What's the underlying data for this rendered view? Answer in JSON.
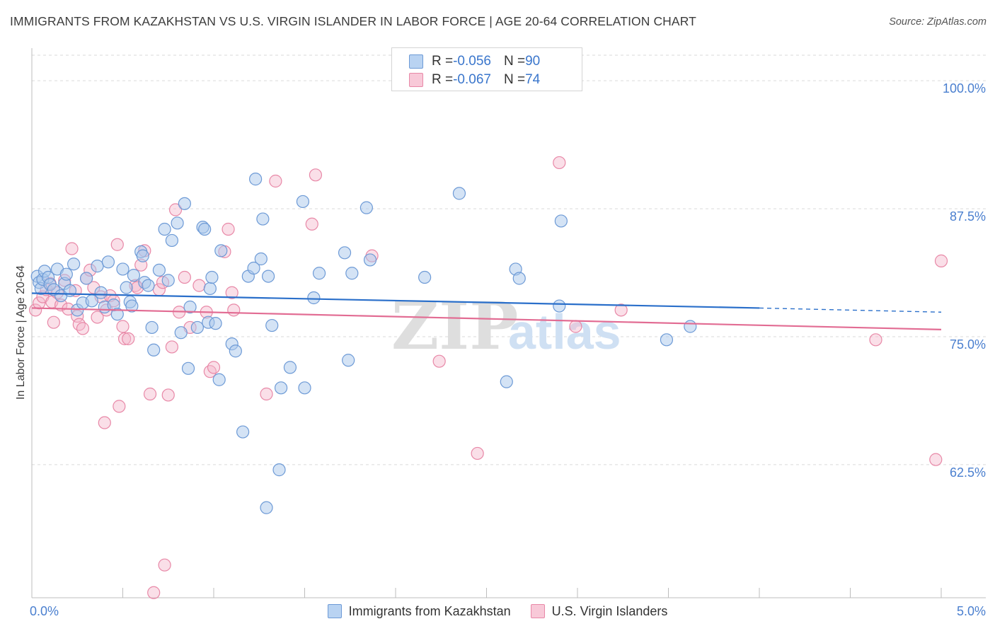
{
  "header": {
    "title": "IMMIGRANTS FROM KAZAKHSTAN VS U.S. VIRGIN ISLANDER IN LABOR FORCE | AGE 20-64 CORRELATION CHART",
    "source": "Source: ZipAtlas.com"
  },
  "legend": {
    "series1": {
      "r_label": "R = ",
      "r_value": "-0.056",
      "n_label": "N = ",
      "n_value": "90"
    },
    "series2": {
      "r_label": "R = ",
      "r_value": "-0.067",
      "n_label": "N = ",
      "n_value": "74"
    }
  },
  "watermark": {
    "zip": "ZIP",
    "atlas": "atlas"
  },
  "colors": {
    "blue_fill": "#a9c7ec",
    "blue_stroke": "#6d9ad6",
    "blue_line": "#2a6fca",
    "pink_fill": "#f4b9cc",
    "pink_stroke": "#e888a7",
    "pink_line": "#e26c93",
    "axis_text": "#4a7fcf",
    "grid": "#dadada"
  },
  "chart_data": {
    "type": "scatter",
    "title": "IMMIGRANTS FROM KAZAKHSTAN VS U.S. VIRGIN ISLANDER IN LABOR FORCE | AGE 20-64 CORRELATION CHART",
    "xlabel": "",
    "ylabel": "In Labor Force | Age 20-64",
    "xlim": [
      0,
      5
    ],
    "ylim": [
      49.5,
      102.5
    ],
    "x_tick_labels": [
      "0.0%",
      "5.0%"
    ],
    "y_ticks": [
      62.5,
      75.0,
      87.5,
      100.0
    ],
    "y_tick_labels": [
      "62.5%",
      "75.0%",
      "87.5%",
      "100.0%"
    ],
    "grid": true,
    "legend_position": "top-center",
    "series": [
      {
        "name": "Immigrants from Kazakhstan",
        "trend": {
          "x": [
            0,
            4.0
          ],
          "y": [
            79.25,
            77.8
          ],
          "dashed_to": [
            5.0,
            77.4
          ]
        },
        "points": [
          [
            0.03,
            80.9
          ],
          [
            0.04,
            80.3
          ],
          [
            0.05,
            79.7
          ],
          [
            0.06,
            80.6
          ],
          [
            0.07,
            81.4
          ],
          [
            0.09,
            80.8
          ],
          [
            0.1,
            80.1
          ],
          [
            0.12,
            79.6
          ],
          [
            0.14,
            81.6
          ],
          [
            0.16,
            79.0
          ],
          [
            0.18,
            80.2
          ],
          [
            0.19,
            81.1
          ],
          [
            0.21,
            79.5
          ],
          [
            0.23,
            82.1
          ],
          [
            0.25,
            77.6
          ],
          [
            0.28,
            78.3
          ],
          [
            0.3,
            80.7
          ],
          [
            0.33,
            78.5
          ],
          [
            0.36,
            81.9
          ],
          [
            0.38,
            79.3
          ],
          [
            0.4,
            77.9
          ],
          [
            0.42,
            82.3
          ],
          [
            0.45,
            78.1
          ],
          [
            0.47,
            77.2
          ],
          [
            0.5,
            81.6
          ],
          [
            0.52,
            79.8
          ],
          [
            0.54,
            78.4
          ],
          [
            0.55,
            78.0
          ],
          [
            0.56,
            81.0
          ],
          [
            0.6,
            83.3
          ],
          [
            0.61,
            82.9
          ],
          [
            0.62,
            80.3
          ],
          [
            0.64,
            80.0
          ],
          [
            0.66,
            75.9
          ],
          [
            0.67,
            73.7
          ],
          [
            0.7,
            81.5
          ],
          [
            0.73,
            85.5
          ],
          [
            0.75,
            80.5
          ],
          [
            0.77,
            84.4
          ],
          [
            0.8,
            86.1
          ],
          [
            0.82,
            75.4
          ],
          [
            0.84,
            88.0
          ],
          [
            0.86,
            71.9
          ],
          [
            0.87,
            77.9
          ],
          [
            0.91,
            75.9
          ],
          [
            0.94,
            85.7
          ],
          [
            0.95,
            85.5
          ],
          [
            0.97,
            76.4
          ],
          [
            0.98,
            79.7
          ],
          [
            0.99,
            80.8
          ],
          [
            1.01,
            76.3
          ],
          [
            1.03,
            70.8
          ],
          [
            1.04,
            83.4
          ],
          [
            1.1,
            74.3
          ],
          [
            1.12,
            73.6
          ],
          [
            1.16,
            65.7
          ],
          [
            1.19,
            80.9
          ],
          [
            1.22,
            81.7
          ],
          [
            1.23,
            90.4
          ],
          [
            1.26,
            82.6
          ],
          [
            1.27,
            86.5
          ],
          [
            1.29,
            58.3
          ],
          [
            1.3,
            80.9
          ],
          [
            1.32,
            76.1
          ],
          [
            1.36,
            62.0
          ],
          [
            1.37,
            70.0
          ],
          [
            1.42,
            72.0
          ],
          [
            1.49,
            88.2
          ],
          [
            1.5,
            70.0
          ],
          [
            1.55,
            78.8
          ],
          [
            1.58,
            81.2
          ],
          [
            1.72,
            83.2
          ],
          [
            1.74,
            72.7
          ],
          [
            1.76,
            81.2
          ],
          [
            1.84,
            87.6
          ],
          [
            1.86,
            82.5
          ],
          [
            2.16,
            80.8
          ],
          [
            2.35,
            89.0
          ],
          [
            2.61,
            70.6
          ],
          [
            2.66,
            81.6
          ],
          [
            2.68,
            80.7
          ],
          [
            2.9,
            78.0
          ],
          [
            2.91,
            86.3
          ],
          [
            3.49,
            74.7
          ],
          [
            3.62,
            76.0
          ]
        ]
      },
      {
        "name": "U.S. Virgin Islanders",
        "trend": {
          "x": [
            0,
            5.0
          ],
          "y": [
            77.8,
            75.7
          ]
        },
        "points": [
          [
            0.02,
            77.6
          ],
          [
            0.04,
            78.3
          ],
          [
            0.06,
            78.9
          ],
          [
            0.08,
            79.6
          ],
          [
            0.1,
            80.2
          ],
          [
            0.11,
            78.4
          ],
          [
            0.12,
            76.4
          ],
          [
            0.14,
            79.3
          ],
          [
            0.16,
            78.1
          ],
          [
            0.18,
            80.5
          ],
          [
            0.2,
            77.7
          ],
          [
            0.22,
            83.6
          ],
          [
            0.24,
            79.5
          ],
          [
            0.25,
            77.0
          ],
          [
            0.26,
            76.2
          ],
          [
            0.28,
            75.8
          ],
          [
            0.3,
            80.7
          ],
          [
            0.32,
            81.5
          ],
          [
            0.34,
            79.8
          ],
          [
            0.36,
            76.9
          ],
          [
            0.38,
            78.9
          ],
          [
            0.4,
            66.6
          ],
          [
            0.41,
            77.6
          ],
          [
            0.43,
            79.0
          ],
          [
            0.45,
            78.5
          ],
          [
            0.47,
            84.0
          ],
          [
            0.48,
            68.2
          ],
          [
            0.5,
            76.0
          ],
          [
            0.51,
            74.8
          ],
          [
            0.53,
            74.8
          ],
          [
            0.57,
            80.0
          ],
          [
            0.58,
            79.8
          ],
          [
            0.6,
            82.0
          ],
          [
            0.62,
            83.4
          ],
          [
            0.65,
            69.4
          ],
          [
            0.67,
            50.0
          ],
          [
            0.7,
            79.6
          ],
          [
            0.72,
            80.3
          ],
          [
            0.73,
            52.7
          ],
          [
            0.75,
            69.3
          ],
          [
            0.77,
            74.0
          ],
          [
            0.79,
            87.4
          ],
          [
            0.81,
            77.4
          ],
          [
            0.84,
            80.8
          ],
          [
            0.87,
            75.9
          ],
          [
            0.92,
            80.0
          ],
          [
            0.96,
            77.4
          ],
          [
            0.98,
            71.6
          ],
          [
            1.0,
            72.0
          ],
          [
            1.06,
            83.3
          ],
          [
            1.08,
            85.5
          ],
          [
            1.1,
            79.3
          ],
          [
            1.11,
            77.6
          ],
          [
            1.29,
            69.4
          ],
          [
            1.34,
            90.2
          ],
          [
            1.54,
            86.0
          ],
          [
            1.56,
            90.8
          ],
          [
            1.87,
            82.9
          ],
          [
            2.24,
            72.6
          ],
          [
            2.45,
            63.6
          ],
          [
            2.9,
            92.0
          ],
          [
            2.99,
            76.0
          ],
          [
            3.24,
            77.6
          ],
          [
            4.64,
            74.7
          ],
          [
            4.97,
            63.0
          ],
          [
            5.0,
            82.4
          ]
        ]
      }
    ]
  },
  "bottom_legend": {
    "series1_label": "Immigrants from Kazakhstan",
    "series2_label": "U.S. Virgin Islanders"
  }
}
